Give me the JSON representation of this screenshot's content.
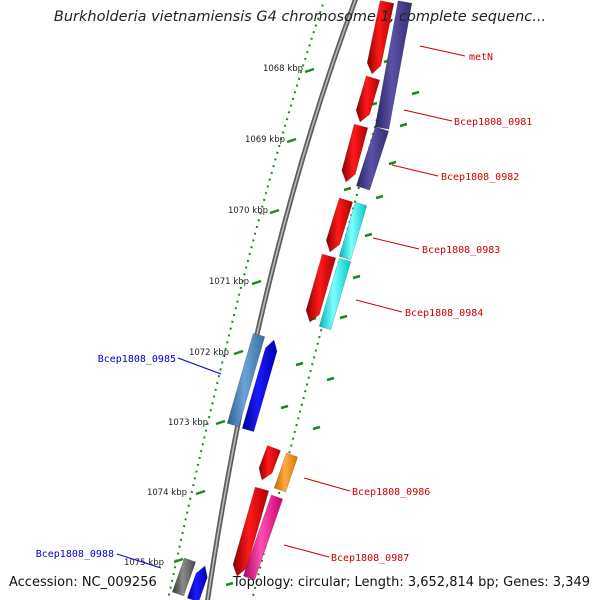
{
  "title": "Burkholderia vietnamiensis G4 chromosome 1, complete sequenc...",
  "footer": {
    "accession": "Accession: NC_009256",
    "summary": "Topology: circular; Length: 3,652,814 bp; Genes: 3,349"
  },
  "ruler": [
    {
      "label": "1068 kbp"
    },
    {
      "label": "1069 kbp"
    },
    {
      "label": "1070 kbp"
    },
    {
      "label": "1071 kbp"
    },
    {
      "label": "1072 kbp"
    },
    {
      "label": "1073 kbp"
    },
    {
      "label": "1074 kbp"
    },
    {
      "label": "1075 kbp"
    }
  ],
  "gene_labels": [
    {
      "text": "metN",
      "color": "#cc0000"
    },
    {
      "text": "Bcep1808_0981",
      "color": "#cc0000"
    },
    {
      "text": "Bcep1808_0982",
      "color": "#cc0000"
    },
    {
      "text": "Bcep1808_0983",
      "color": "#cc0000"
    },
    {
      "text": "Bcep1808_0984",
      "color": "#cc0000"
    },
    {
      "text": "Bcep1808_0985",
      "color": "#0000cc"
    },
    {
      "text": "Bcep1808_0986",
      "color": "#cc0000"
    },
    {
      "text": "Bcep1808_0987",
      "color": "#cc0000"
    },
    {
      "text": "Bcep1808_0988",
      "color": "#0000cc"
    }
  ],
  "colors": {
    "forward_cds": "#ee0000",
    "reverse_cds": "#0000ee",
    "feature_navy": "#443b8a",
    "feature_cyan": "#00eeee",
    "feature_steel": "#4a84b8",
    "feature_orange": "#ff8c00",
    "feature_pink": "#ff1493",
    "feature_gray": "#666666",
    "backbone": "#8a8a8a",
    "tick_green": "#1a8a1a"
  }
}
